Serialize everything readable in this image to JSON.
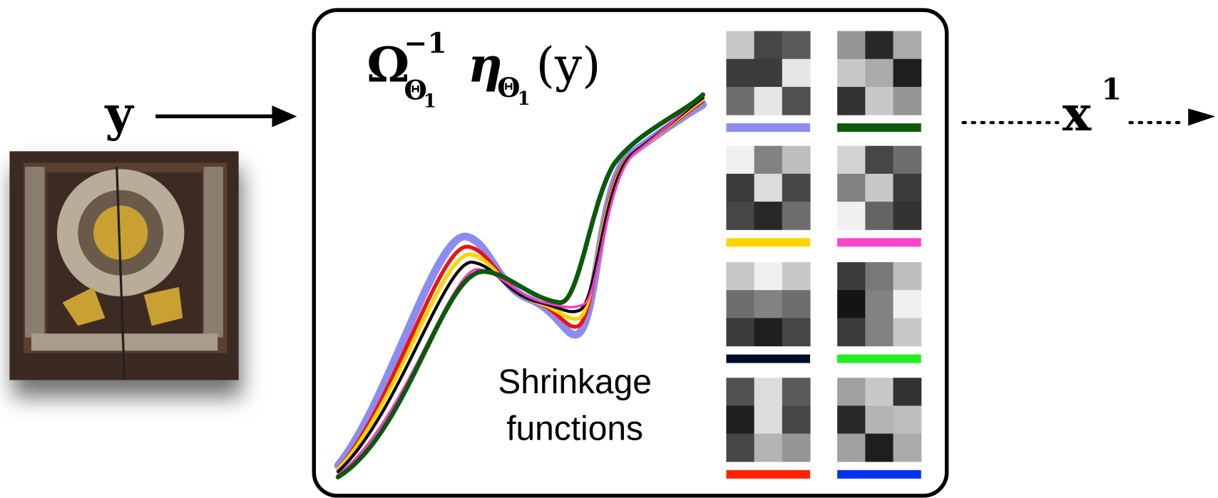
{
  "input_label": "y",
  "formula": {
    "omega": "Ω",
    "omega_sup": "−1",
    "omega_sub": "Θ",
    "omega_sub_index": "1",
    "eta": "η",
    "eta_sub": "Θ",
    "eta_sub_index": "1",
    "argument": "(y)"
  },
  "caption": [
    "Shrinkage",
    "functions"
  ],
  "output": {
    "base": "x",
    "sup": "1"
  }
}
